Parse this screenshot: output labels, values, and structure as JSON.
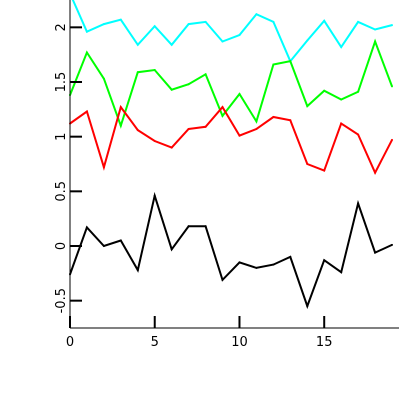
{
  "chart_data": {
    "type": "line",
    "title": "",
    "xlabel": "",
    "ylabel": "",
    "xlim": [
      0,
      19
    ],
    "ylim": [
      -0.75,
      2.25
    ],
    "x_ticks": [
      0,
      5,
      10,
      15
    ],
    "x_tick_labels": [
      "0",
      "5",
      "10",
      "15"
    ],
    "y_ticks": [
      -0.5,
      0,
      0.5,
      1,
      1.5,
      2
    ],
    "y_tick_labels": [
      "-0.5",
      "0",
      "0.5",
      "1",
      "1.5",
      "2"
    ],
    "grid": false,
    "legend": "none",
    "x": [
      0,
      1,
      2,
      3,
      4,
      5,
      6,
      7,
      8,
      9,
      10,
      11,
      12,
      13,
      14,
      15,
      16,
      17,
      18,
      19
    ],
    "series": [
      {
        "color": "#00ffff",
        "values": [
          2.31,
          1.96,
          2.03,
          2.07,
          1.84,
          2.01,
          1.84,
          2.03,
          2.05,
          1.87,
          1.93,
          2.12,
          2.05,
          1.69,
          1.88,
          2.06,
          1.82,
          2.05,
          1.98,
          2.02
        ]
      },
      {
        "color": "#00ff00",
        "values": [
          1.38,
          1.77,
          1.53,
          1.1,
          1.59,
          1.61,
          1.43,
          1.48,
          1.57,
          1.19,
          1.39,
          1.14,
          1.66,
          1.69,
          1.28,
          1.42,
          1.34,
          1.41,
          1.87,
          1.46
        ]
      },
      {
        "color": "#ff0000",
        "values": [
          1.12,
          1.23,
          0.72,
          1.27,
          1.06,
          0.96,
          0.9,
          1.07,
          1.09,
          1.27,
          1.01,
          1.07,
          1.18,
          1.15,
          0.75,
          0.69,
          1.12,
          1.02,
          0.67,
          0.97
        ]
      },
      {
        "color": "#000000",
        "values": [
          -0.26,
          0.17,
          0.0,
          0.05,
          -0.22,
          0.46,
          -0.03,
          0.18,
          0.18,
          -0.31,
          -0.15,
          -0.2,
          -0.17,
          -0.1,
          -0.55,
          -0.13,
          -0.24,
          0.39,
          -0.06,
          0.01
        ]
      }
    ]
  }
}
